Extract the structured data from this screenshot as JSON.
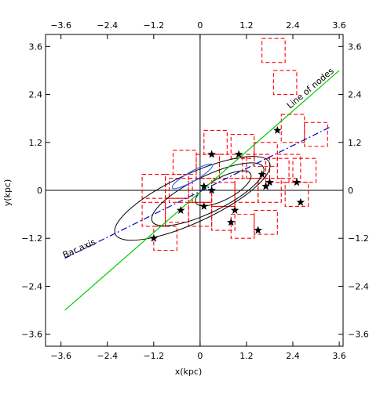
{
  "chart_data": {
    "type": "scatter",
    "xlabel": "x(kpc)",
    "ylabel": "y(kpc)",
    "xlim": [
      -4.0,
      3.7
    ],
    "ylim": [
      -3.9,
      3.9
    ],
    "ticks": [
      -3.6,
      -2.4,
      -1.2,
      0,
      1.2,
      2.4,
      3.6
    ],
    "tick_labels": [
      "−3.6",
      "−2.4",
      "−1.2",
      "0",
      "1.2",
      "2.4",
      "3.6"
    ],
    "grid": false,
    "zero_axes": true,
    "colors": {
      "frame": "#000000",
      "boxes": "#ff0000",
      "line_of_nodes": "#00cc00",
      "bar_axis": "#0000cc",
      "contours_dark": "#000000",
      "contour_blue": "#3366ff",
      "stars": "#000000"
    },
    "lines": [
      {
        "label": "Line of nodes",
        "style": "solid",
        "color": "#00cc00",
        "x": [
          -3.5,
          3.6
        ],
        "y": [
          -3.0,
          3.0
        ]
      },
      {
        "label": "Bar axis",
        "style": "dashdot",
        "color": "#0000cc",
        "x": [
          -3.5,
          3.4
        ],
        "y": [
          -1.7,
          1.6
        ]
      }
    ],
    "annotations": [
      {
        "text": "Line of nodes",
        "x": 2.9,
        "y": 2.5,
        "color": "#000000",
        "angle": -40
      },
      {
        "text": "Bar axis",
        "x": -3.1,
        "y": -1.52,
        "color": "#000000",
        "angle": -24
      }
    ],
    "boxes": [
      [
        1.6,
        3.2,
        0.6,
        0.6
      ],
      [
        1.9,
        2.4,
        0.6,
        0.6
      ],
      [
        2.1,
        1.2,
        0.6,
        0.7
      ],
      [
        2.7,
        1.1,
        0.6,
        0.6
      ],
      [
        0.1,
        0.9,
        0.6,
        0.6
      ],
      [
        0.8,
        0.8,
        0.6,
        0.6
      ],
      [
        1.4,
        0.6,
        0.6,
        0.6
      ],
      [
        2.0,
        0.3,
        0.6,
        0.6
      ],
      [
        -0.7,
        0.4,
        0.6,
        0.6
      ],
      [
        -0.1,
        0.3,
        0.6,
        0.6
      ],
      [
        0.5,
        0.3,
        0.6,
        0.6
      ],
      [
        1.2,
        0.3,
        0.6,
        0.6
      ],
      [
        1.7,
        0.2,
        0.6,
        0.6
      ],
      [
        2.4,
        0.2,
        0.6,
        0.6
      ],
      [
        -1.5,
        -0.2,
        0.6,
        0.6
      ],
      [
        -0.9,
        -0.2,
        0.6,
        0.6
      ],
      [
        -0.3,
        -0.3,
        0.6,
        0.6
      ],
      [
        0.3,
        -0.4,
        0.6,
        0.6
      ],
      [
        0.9,
        -0.3,
        0.6,
        0.6
      ],
      [
        1.5,
        -0.3,
        0.6,
        0.6
      ],
      [
        2.2,
        -0.4,
        0.6,
        0.6
      ],
      [
        -1.5,
        -0.9,
        0.6,
        0.6
      ],
      [
        -0.9,
        -0.8,
        0.6,
        0.6
      ],
      [
        -0.3,
        -0.9,
        0.6,
        0.6
      ],
      [
        0.3,
        -1.0,
        0.6,
        0.6
      ],
      [
        0.8,
        -1.2,
        0.6,
        0.6
      ],
      [
        1.4,
        -1.1,
        0.6,
        0.6
      ],
      [
        -1.2,
        -1.5,
        0.6,
        0.6
      ],
      [
        -0.8,
        -0.3,
        0.6,
        0.6
      ]
    ],
    "stars": [
      [
        0.3,
        0.9
      ],
      [
        1.0,
        0.9
      ],
      [
        2.0,
        1.5
      ],
      [
        1.6,
        0.4
      ],
      [
        1.7,
        0.1
      ],
      [
        1.8,
        0.2
      ],
      [
        2.5,
        0.2
      ],
      [
        2.6,
        -0.3
      ],
      [
        0.1,
        0.1
      ],
      [
        0.3,
        0.0
      ],
      [
        -0.5,
        -0.5
      ],
      [
        0.1,
        -0.4
      ],
      [
        0.8,
        -0.8
      ],
      [
        1.5,
        -1.0
      ],
      [
        -1.2,
        -1.2
      ],
      [
        0.9,
        -0.5
      ]
    ],
    "contours_dark": [
      {
        "cx": -0.2,
        "cy": -0.2,
        "rx": 2.2,
        "ry": 0.6,
        "angle": 25
      },
      {
        "cx": 0.2,
        "cy": -0.1,
        "rx": 1.6,
        "ry": 0.45,
        "angle": 26
      },
      {
        "cx": 0.6,
        "cy": 0.05,
        "rx": 0.8,
        "ry": 0.28,
        "angle": 28
      }
    ],
    "contours_blue": [
      {
        "cx": -0.2,
        "cy": 0.35,
        "rx": 0.6,
        "ry": 0.12,
        "angle": 30
      }
    ]
  }
}
